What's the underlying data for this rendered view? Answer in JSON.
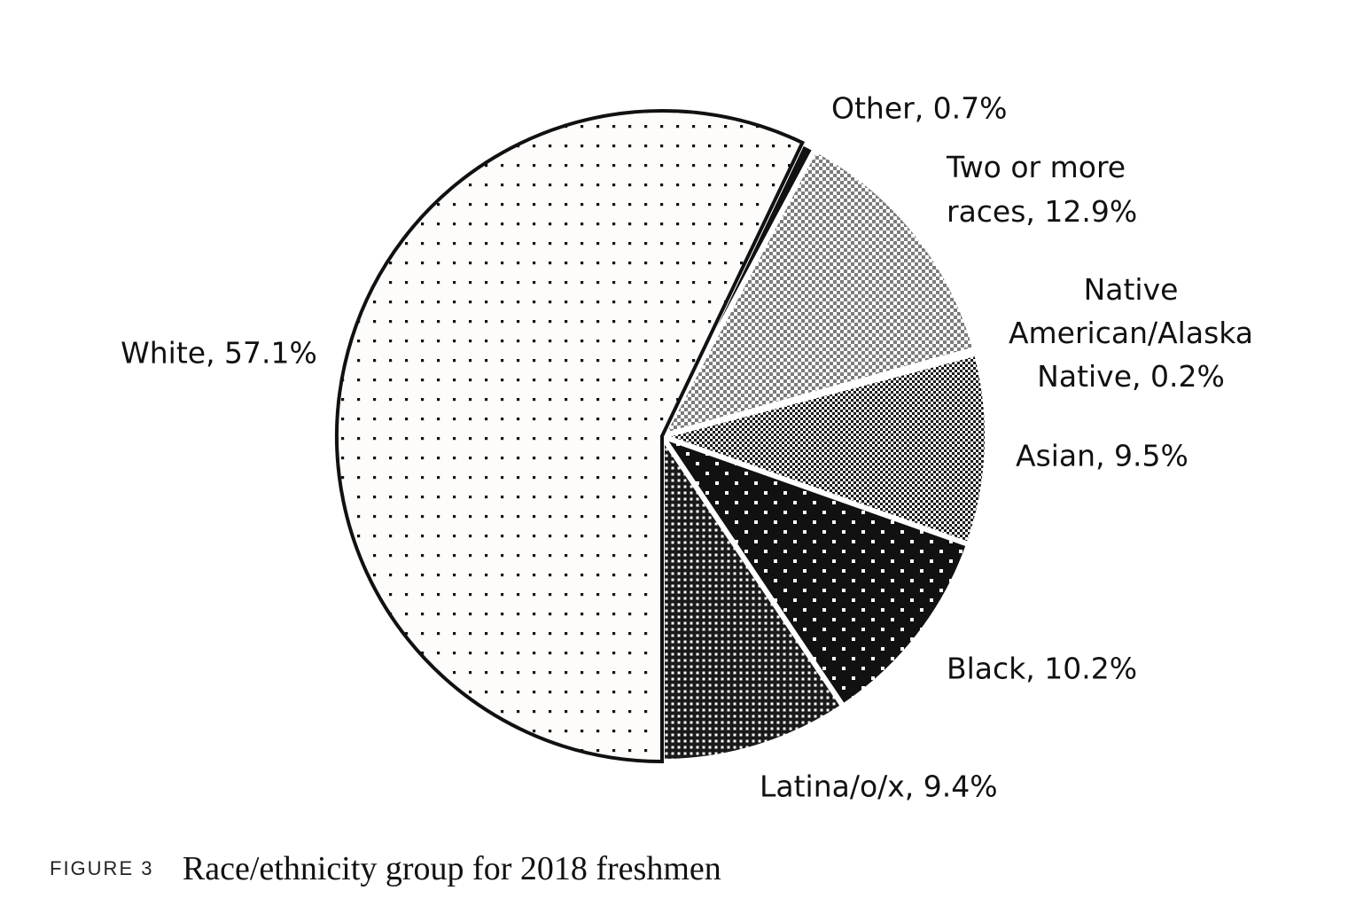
{
  "chart_data": {
    "type": "pie",
    "title": "",
    "slices": [
      {
        "label": "White, 57.1%",
        "name": "White",
        "value": 57.1,
        "pattern": "sparse-dots"
      },
      {
        "label": "Other, 0.7%",
        "name": "Other",
        "value": 0.7,
        "pattern": "solid-black"
      },
      {
        "label": "Two or more races, 12.9%",
        "name": "Two or more races",
        "value": 12.9,
        "pattern": "gray-checker"
      },
      {
        "label": "Native American/Alaska Native, 0.2%",
        "name": "Native American/Alaska Native",
        "value": 0.2,
        "pattern": "white"
      },
      {
        "label": "Asian, 9.5%",
        "name": "Asian",
        "value": 9.5,
        "pattern": "fine-checker"
      },
      {
        "label": "Black, 10.2%",
        "name": "Black",
        "value": 10.2,
        "pattern": "black-white-dots"
      },
      {
        "label": "Latina/o/x, 9.4%",
        "name": "Latina/o/x",
        "value": 9.4,
        "pattern": "dense-grid"
      }
    ]
  },
  "caption": {
    "tag": "FIGURE 3",
    "title": "Race/ethnicity group for 2018 freshmen"
  },
  "colors": {
    "ink": "#111111",
    "paper": "#fdfcfa",
    "gray": "#8a8a8a"
  }
}
